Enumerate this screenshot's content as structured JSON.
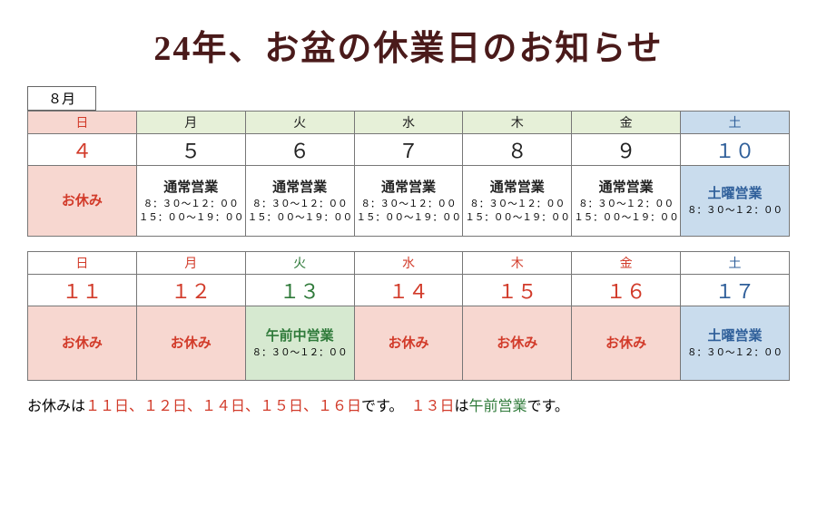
{
  "colors": {
    "title": "#4a1a1a",
    "sunday_header_bg": "#f7d7d0",
    "weekday_header_bg": "#e6f0d8",
    "saturday_header_bg": "#c9dced",
    "holiday_bg": "#f7d7d0",
    "normal_bg": "#ffffff",
    "am_only_bg": "#d6e9d0",
    "saturday_bg": "#c9dced",
    "red_text": "#d23b2a",
    "green_text": "#2f7a3a",
    "blue_text": "#2f5f9a",
    "black": "#222222"
  },
  "title": "24年、お盆の休業日のお知らせ",
  "month_label": "８月",
  "days_of_week": [
    "日",
    "月",
    "火",
    "水",
    "木",
    "金",
    "土"
  ],
  "week1": {
    "dates": [
      "４",
      "５",
      "６",
      "７",
      "８",
      "９",
      "１０"
    ],
    "cells": [
      {
        "kind": "holiday",
        "main": "お休み",
        "time1": "",
        "time2": ""
      },
      {
        "kind": "normal",
        "main": "通常営業",
        "time1": "８：３０～１２：００",
        "time2": "１５：００～１９：００"
      },
      {
        "kind": "normal",
        "main": "通常営業",
        "time1": "８：３０～１２：００",
        "time2": "１５：００～１９：００"
      },
      {
        "kind": "normal",
        "main": "通常営業",
        "time1": "８：３０～１２：００",
        "time2": "１５：００～１９：００"
      },
      {
        "kind": "normal",
        "main": "通常営業",
        "time1": "８：３０～１２：００",
        "time2": "１５：００～１９：００"
      },
      {
        "kind": "normal",
        "main": "通常営業",
        "time1": "８：３０～１２：００",
        "time2": "１５：００～１９：００"
      },
      {
        "kind": "saturday",
        "main": "土曜営業",
        "time1": "８：３０～１２：００",
        "time2": ""
      }
    ]
  },
  "week2": {
    "dates": [
      "１１",
      "１２",
      "１３",
      "１４",
      "１５",
      "１６",
      "１７"
    ],
    "header_colors": [
      "red",
      "red",
      "green",
      "red",
      "red",
      "red",
      "blue"
    ],
    "date_colors": [
      "red",
      "red",
      "green",
      "red",
      "red",
      "red",
      "blue"
    ],
    "cells": [
      {
        "kind": "holiday",
        "main": "お休み",
        "time1": "",
        "time2": ""
      },
      {
        "kind": "holiday",
        "main": "お休み",
        "time1": "",
        "time2": ""
      },
      {
        "kind": "am_only",
        "main": "午前中営業",
        "time1": "８：３０～１２：００",
        "time2": ""
      },
      {
        "kind": "holiday",
        "main": "お休み",
        "time1": "",
        "time2": ""
      },
      {
        "kind": "holiday",
        "main": "お休み",
        "time1": "",
        "time2": ""
      },
      {
        "kind": "holiday",
        "main": "お休み",
        "time1": "",
        "time2": ""
      },
      {
        "kind": "saturday",
        "main": "土曜営業",
        "time1": "８：３０～１２：００",
        "time2": ""
      }
    ]
  },
  "footer": {
    "p1": "お休みは",
    "p2": "１１日、１２日、１４日、１５日、１６日",
    "p3": "です。　",
    "p4": "１３日",
    "p5": "は",
    "p6": "午前営業",
    "p7": "です。"
  }
}
